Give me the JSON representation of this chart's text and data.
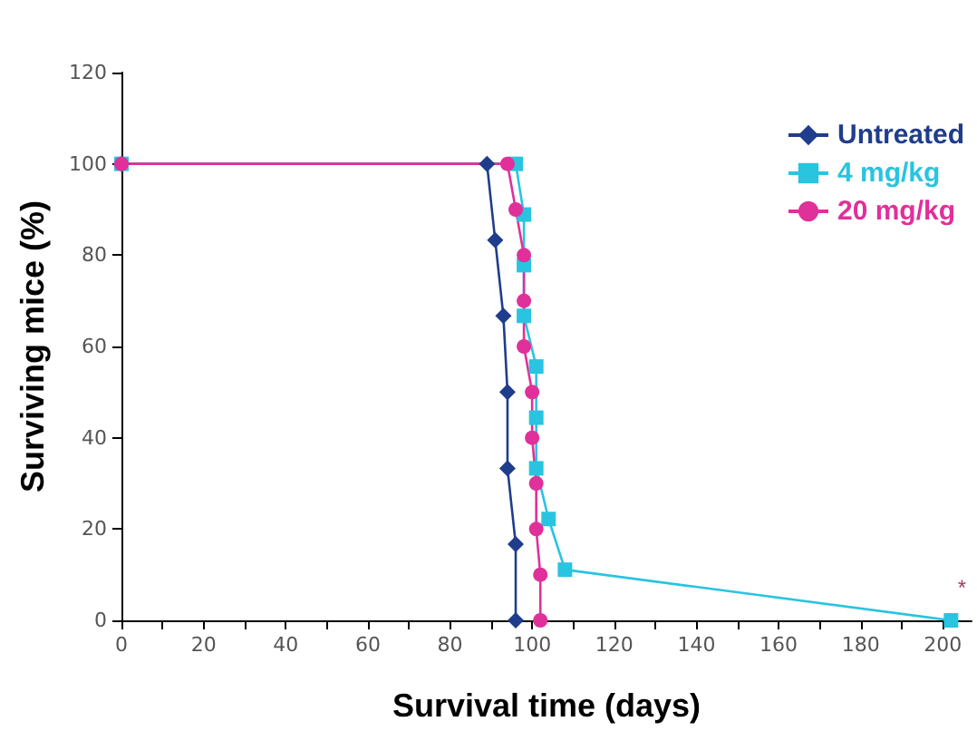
{
  "chart_data": {
    "type": "line",
    "xlabel": "Survival time (days)",
    "ylabel": "Surviving mice (%)",
    "xlim": [
      0,
      207
    ],
    "ylim": [
      0,
      120
    ],
    "xticks": [
      0,
      {
        "value": 10,
        "label": null
      },
      20,
      {
        "value": 30,
        "label": null
      },
      40,
      {
        "value": 50,
        "label": null
      },
      60,
      {
        "value": 70,
        "label": null
      },
      80,
      {
        "value": 90,
        "label": null
      },
      100,
      {
        "value": 110,
        "label": null
      },
      120,
      {
        "value": 130,
        "label": null
      },
      140,
      {
        "value": 150,
        "label": null
      },
      160,
      {
        "value": 170,
        "label": null
      },
      180,
      {
        "value": 190,
        "label": null
      },
      200
    ],
    "yticks": [
      0,
      20,
      40,
      60,
      80,
      100,
      120
    ],
    "grid": false,
    "legend": "top right",
    "line_style": "solid",
    "annotations": [
      {
        "text": "*",
        "x": 202,
        "y": 0
      }
    ],
    "series": [
      {
        "name": "Untreated",
        "color": "#1f3d8c",
        "marker": "diamond",
        "x": [
          0,
          89,
          91,
          93,
          94,
          94,
          96,
          96
        ],
        "values": [
          100,
          100,
          83.3,
          66.7,
          50,
          33.3,
          16.7,
          0
        ]
      },
      {
        "name": "4 mg/kg",
        "color": "#29c4e0",
        "marker": "square",
        "x": [
          0,
          96,
          98,
          98,
          98,
          101,
          101,
          101,
          104,
          108,
          202
        ],
        "values": [
          100,
          100,
          88.9,
          77.8,
          66.7,
          55.6,
          44.4,
          33.3,
          22.2,
          11.1,
          0
        ]
      },
      {
        "name": "20 mg/kg",
        "color": "#e0309a",
        "marker": "circle",
        "x": [
          0,
          94,
          96,
          98,
          98,
          98,
          100,
          100,
          101,
          101,
          102,
          102
        ],
        "values": [
          100,
          100,
          90,
          80,
          70,
          60,
          50,
          40,
          30,
          20,
          10,
          0
        ]
      }
    ]
  }
}
